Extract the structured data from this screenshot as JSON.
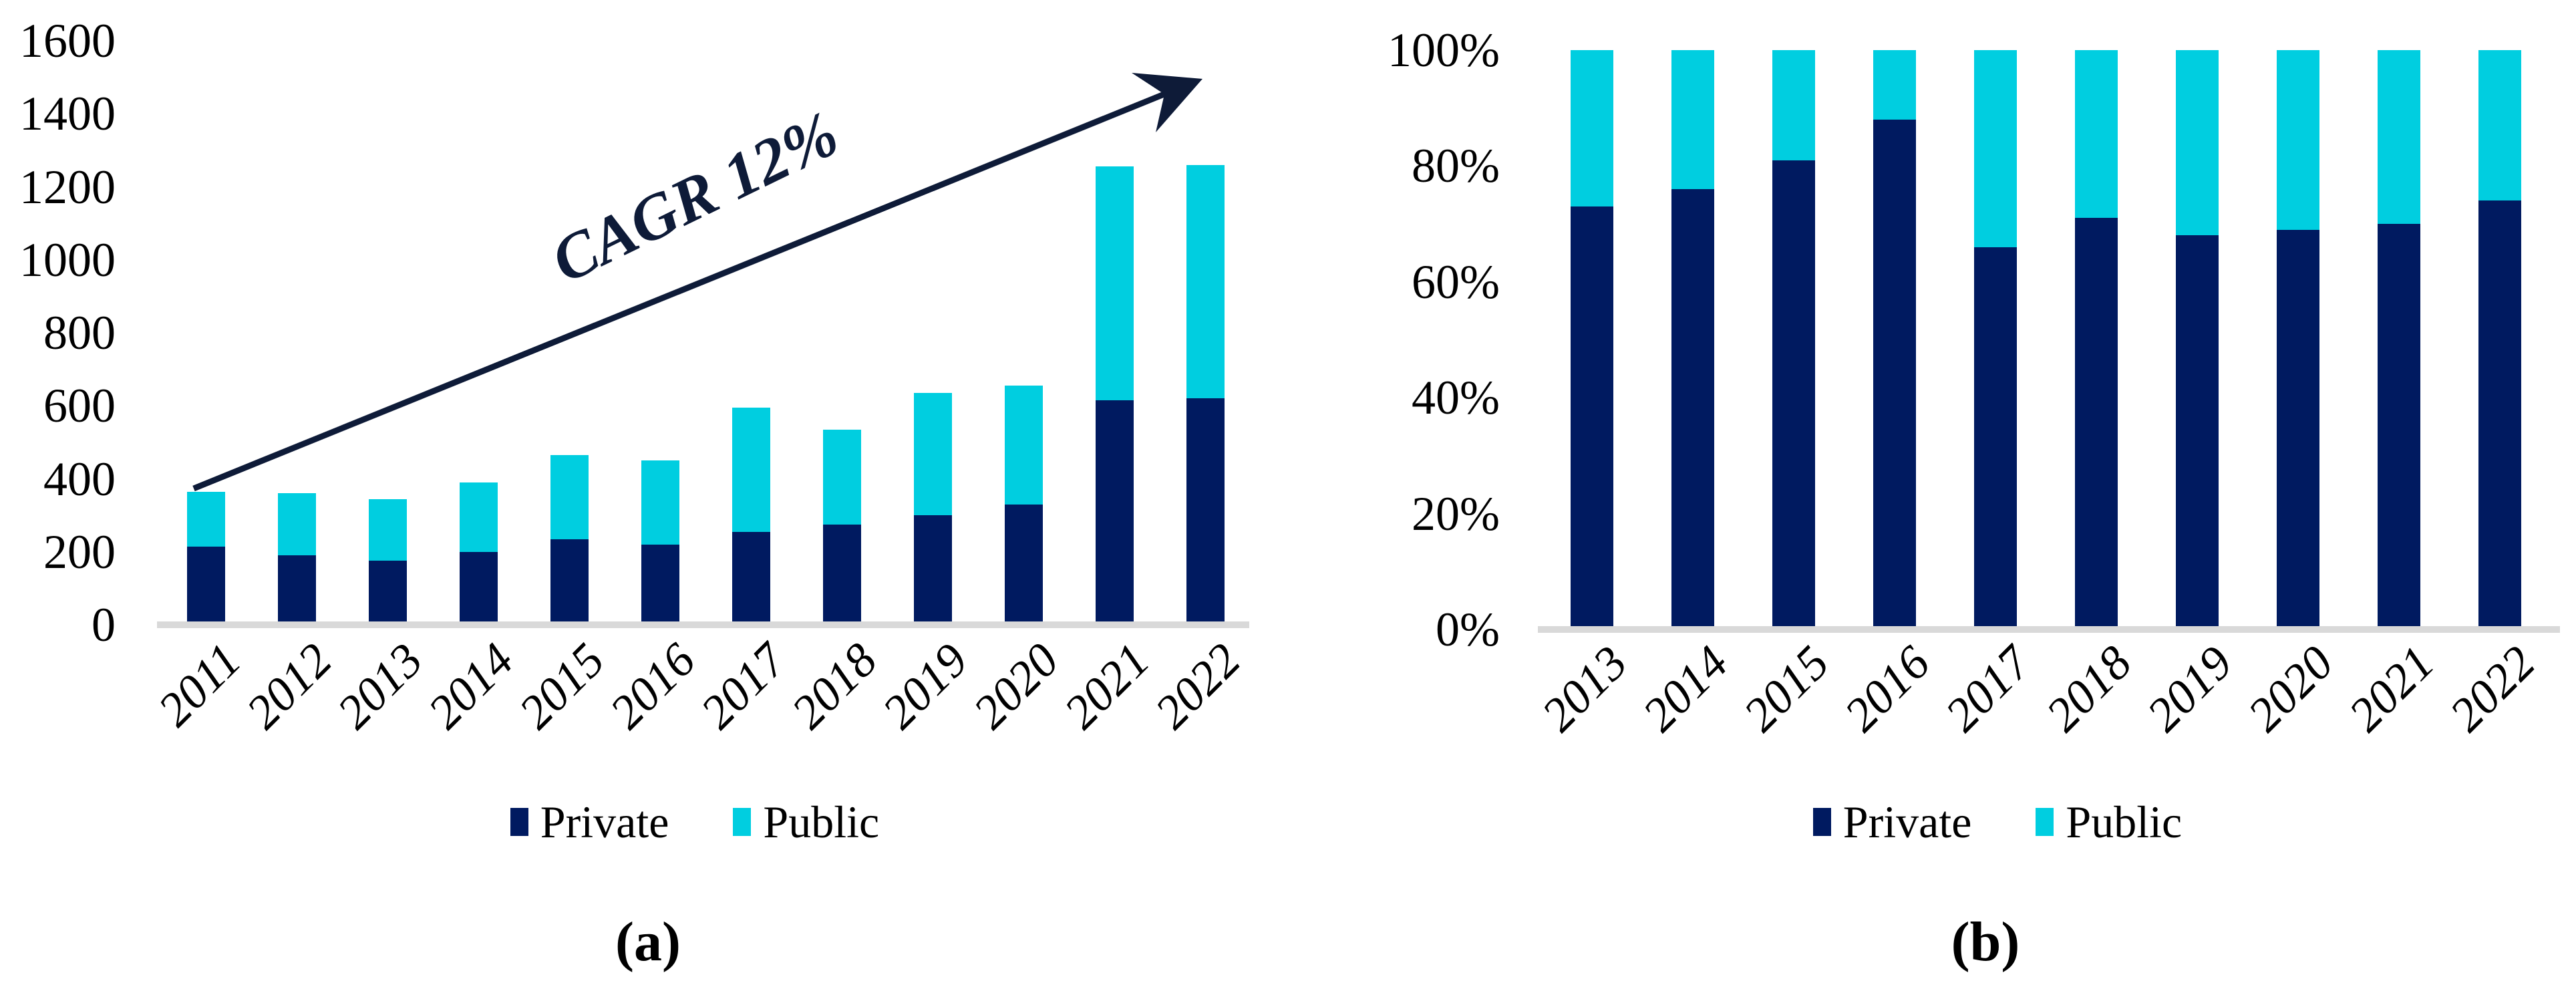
{
  "figure": {
    "panels": [
      {
        "caption": "(a)"
      },
      {
        "caption": "(b)"
      }
    ]
  },
  "colors": {
    "private": "#001A60",
    "public": "#00CEE0",
    "arrow": "#0E1B38",
    "axis_line": "#D9D9D9",
    "text": "#000000"
  },
  "chart_data": [
    {
      "id": "a",
      "type": "bar",
      "stacked": true,
      "title": "",
      "xlabel": "",
      "ylabel": "",
      "annotation": "CAGR 12%",
      "legend_position": "bottom",
      "grid": false,
      "x_label_rotation": -45,
      "categories": [
        "2011",
        "2012",
        "2013",
        "2014",
        "2015",
        "2016",
        "2017",
        "2018",
        "2019",
        "2020",
        "2021",
        "2022"
      ],
      "series": [
        {
          "name": "Private",
          "values": [
            215,
            190,
            175,
            200,
            235,
            220,
            255,
            275,
            300,
            330,
            615,
            620
          ]
        },
        {
          "name": "Public",
          "values": [
            150,
            170,
            170,
            190,
            230,
            230,
            340,
            260,
            335,
            325,
            640,
            640
          ]
        }
      ],
      "totals": [
        365,
        360,
        345,
        390,
        465,
        450,
        595,
        535,
        635,
        655,
        1255,
        1260
      ],
      "ylim": [
        0,
        1600
      ],
      "ytick_values": [
        0,
        200,
        400,
        600,
        800,
        1000,
        1200,
        1400,
        1600
      ],
      "yticks": [
        "0",
        "200",
        "400",
        "600",
        "800",
        "1000",
        "1200",
        "1400",
        "1600"
      ]
    },
    {
      "id": "b",
      "type": "bar",
      "stacked": true,
      "percent": true,
      "title": "",
      "xlabel": "",
      "ylabel": "",
      "legend_position": "bottom",
      "grid": false,
      "x_label_rotation": -45,
      "categories": [
        "2013",
        "2014",
        "2015",
        "2016",
        "2017",
        "2018",
        "2019",
        "2020",
        "2021",
        "2022"
      ],
      "series": [
        {
          "name": "Private",
          "values": [
            73,
            76,
            81,
            88,
            66,
            71,
            68,
            69,
            70,
            74
          ]
        },
        {
          "name": "Public",
          "values": [
            27,
            24,
            19,
            12,
            34,
            29,
            32,
            31,
            30,
            26
          ]
        }
      ],
      "ylim": [
        0,
        100
      ],
      "ytick_values": [
        0,
        20,
        40,
        60,
        80,
        100
      ],
      "yticks": [
        "0%",
        "20%",
        "40%",
        "60%",
        "80%",
        "100%"
      ]
    }
  ]
}
